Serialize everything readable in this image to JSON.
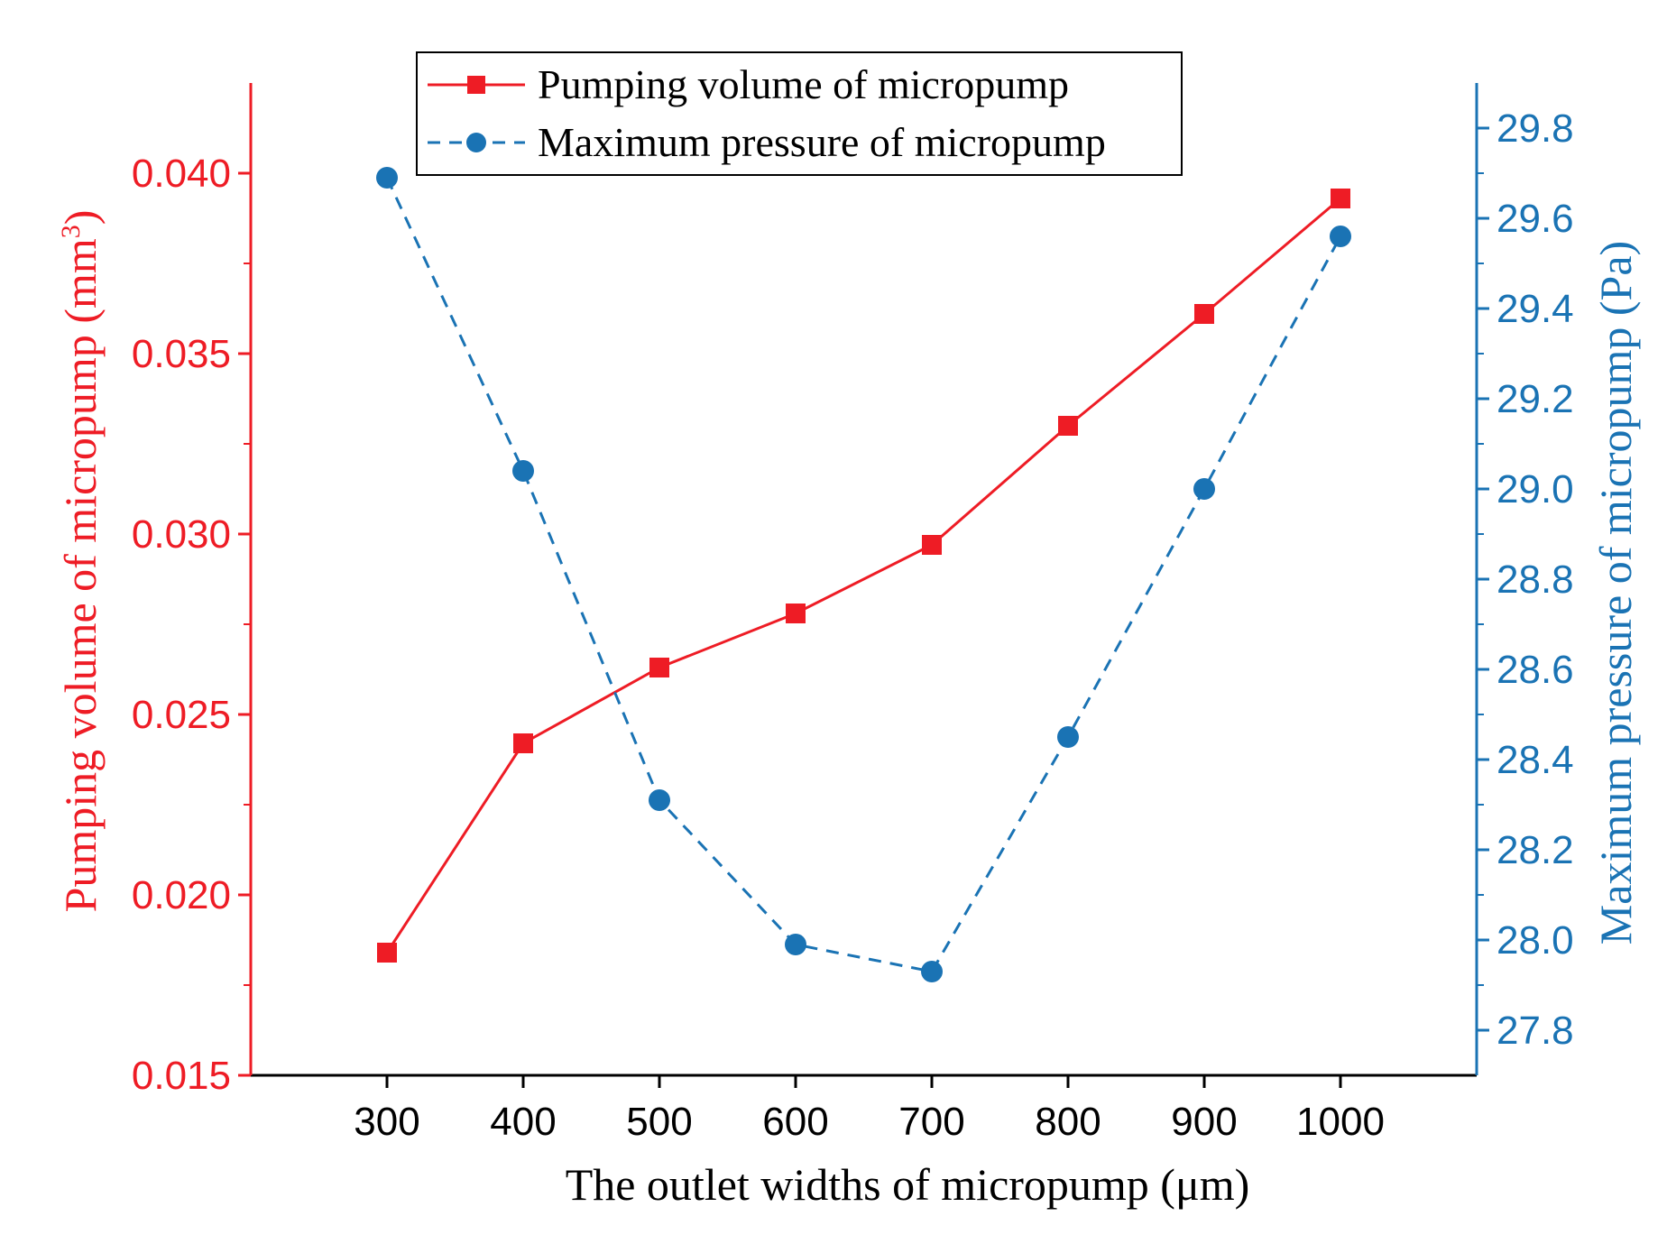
{
  "chart_data": {
    "type": "line",
    "title": "",
    "x": [
      300,
      400,
      500,
      600,
      700,
      800,
      900,
      1000
    ],
    "xlabel": "The outlet widths of micropump (μm)",
    "xlim": [
      200,
      1100
    ],
    "xticks": [
      300,
      400,
      500,
      600,
      700,
      800,
      900,
      1000
    ],
    "xtick_labels": [
      "300",
      "400",
      "500",
      "600",
      "700",
      "800",
      "900",
      "1000"
    ],
    "grid": false,
    "legend_position": "top-center",
    "y_left": {
      "label": "Pumping volume of micropump (mm",
      "label_sup": "3",
      "label_end": ")",
      "color": "#ee1c25",
      "lim": [
        0.015,
        0.0425
      ],
      "ticks": [
        0.015,
        0.02,
        0.025,
        0.03,
        0.035,
        0.04
      ],
      "tick_labels": [
        "0.015",
        "0.020",
        "0.025",
        "0.030",
        "0.035",
        "0.040"
      ]
    },
    "y_right": {
      "label": "Maximum pressure of micropump (Pa)",
      "color": "#1a73b4",
      "lim": [
        27.7,
        29.9
      ],
      "ticks": [
        27.8,
        28.0,
        28.2,
        28.4,
        28.6,
        28.8,
        29.0,
        29.2,
        29.4,
        29.6,
        29.8
      ],
      "tick_labels": [
        "27.8",
        "28.0",
        "28.2",
        "28.4",
        "28.6",
        "28.8",
        "29.0",
        "29.2",
        "29.4",
        "29.6",
        "29.8"
      ]
    },
    "series": [
      {
        "name": "Pumping volume of micropump",
        "axis": "left",
        "color": "#ee1c25",
        "marker": "square",
        "line_style": "solid",
        "values": [
          0.0184,
          0.0242,
          0.0263,
          0.0278,
          0.0297,
          0.033,
          0.0361,
          0.0393
        ]
      },
      {
        "name": "Maximum pressure of micropump",
        "axis": "right",
        "color": "#1a73b4",
        "marker": "circle",
        "line_style": "dashed",
        "values": [
          29.69,
          29.04,
          28.31,
          27.99,
          27.93,
          28.45,
          29.0,
          29.56
        ]
      }
    ]
  }
}
